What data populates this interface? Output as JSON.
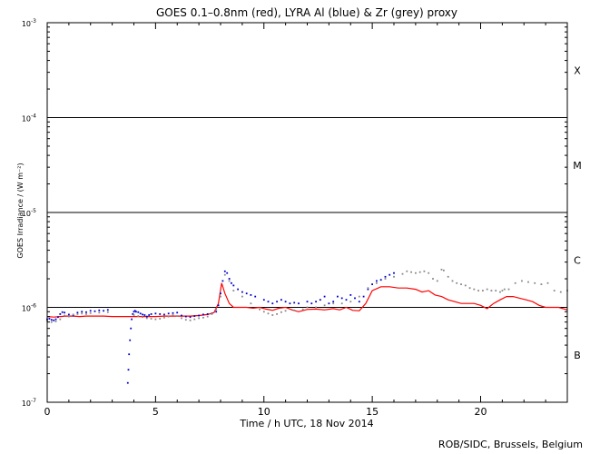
{
  "chart_data": {
    "type": "scatter",
    "title": "GOES 0.1–0.8nm (red), LYRA Al (blue) & Zr (grey) proxy",
    "xlabel": "Time / h UTC, 18 Nov 2014",
    "ylabel": "GOES Irradiance / (W m⁻²)",
    "xlim": [
      0,
      24
    ],
    "ylim": [
      1e-07,
      0.001
    ],
    "yscale": "log",
    "x_ticks": [
      0,
      5,
      10,
      15,
      20
    ],
    "x_tick_labels": [
      "0",
      "5",
      "10",
      "15",
      "20"
    ],
    "y_ticks": [
      1e-07,
      1e-06,
      1e-05,
      0.0001,
      0.001
    ],
    "y_tick_labels": [
      {
        "base": "10",
        "exp": "-7"
      },
      {
        "base": "10",
        "exp": "-6"
      },
      {
        "base": "10",
        "exp": "-5"
      },
      {
        "base": "10",
        "exp": "-4"
      },
      {
        "base": "10",
        "exp": "-3"
      }
    ],
    "flare_class_lines": [
      1e-06,
      1e-05,
      0.0001
    ],
    "flare_classes": [
      {
        "label": "X",
        "y": 0.000316
      },
      {
        "label": "M",
        "y": 3.16e-05
      },
      {
        "label": "C",
        "y": 3.16e-06
      },
      {
        "label": "B",
        "y": 3.16e-07
      }
    ],
    "series": [
      {
        "name": "GOES 0.1–0.8nm",
        "color": "#ff0000",
        "style": "line",
        "x": [
          0,
          0.3,
          0.6,
          0.9,
          1.2,
          1.5,
          1.8,
          2.2,
          2.6,
          3.0,
          3.4,
          3.8,
          4.2,
          4.6,
          5.0,
          5.4,
          5.8,
          6.2,
          6.6,
          7.0,
          7.4,
          7.7,
          7.9,
          8.05,
          8.2,
          8.4,
          8.6,
          8.9,
          9.2,
          9.5,
          9.8,
          10.1,
          10.4,
          10.7,
          11.0,
          11.3,
          11.6,
          12.0,
          12.4,
          12.8,
          13.2,
          13.5,
          13.8,
          14.1,
          14.4,
          14.7,
          15.0,
          15.4,
          15.8,
          16.2,
          16.6,
          17.0,
          17.3,
          17.6,
          17.9,
          18.2,
          18.5,
          18.8,
          19.1,
          19.4,
          19.7,
          20.0,
          20.3,
          20.6,
          20.9,
          21.2,
          21.5,
          21.8,
          22.1,
          22.4,
          22.7,
          23.0,
          23.3,
          23.6,
          24.0
        ],
        "y": [
          8e-07,
          7.9e-07,
          8e-07,
          8.1e-07,
          8.1e-07,
          8e-07,
          8.1e-07,
          8.1e-07,
          8.1e-07,
          8e-07,
          8e-07,
          8e-07,
          8e-07,
          8e-07,
          8e-07,
          8.1e-07,
          8.1e-07,
          8.1e-07,
          8.1e-07,
          8.2e-07,
          8.4e-07,
          8.8e-07,
          1.1e-06,
          1.8e-06,
          1.4e-06,
          1.1e-06,
          1e-06,
          1e-06,
          1e-06,
          9.8e-07,
          1e-06,
          9.6e-07,
          9.3e-07,
          9.8e-07,
          1e-06,
          9.4e-07,
          9e-07,
          9.5e-07,
          9.6e-07,
          9.4e-07,
          9.7e-07,
          9.4e-07,
          1e-06,
          9.3e-07,
          9.2e-07,
          1.1e-06,
          1.5e-06,
          1.65e-06,
          1.65e-06,
          1.6e-06,
          1.6e-06,
          1.55e-06,
          1.45e-06,
          1.5e-06,
          1.35e-06,
          1.3e-06,
          1.2e-06,
          1.15e-06,
          1.1e-06,
          1.1e-06,
          1.1e-06,
          1.05e-06,
          9.7e-07,
          1.1e-06,
          1.2e-06,
          1.3e-06,
          1.3e-06,
          1.25e-06,
          1.2e-06,
          1.15e-06,
          1.05e-06,
          1e-06,
          1e-06,
          1e-06,
          9.4e-07
        ]
      },
      {
        "name": "LYRA Al",
        "color": "#0000cc",
        "style": "dots",
        "x": [
          0.0,
          0.1,
          0.2,
          0.3,
          0.4,
          0.5,
          0.6,
          0.7,
          0.8,
          1.0,
          1.2,
          1.4,
          1.6,
          1.8,
          2.0,
          2.2,
          2.4,
          2.6,
          2.8,
          3.72,
          3.75,
          3.78,
          3.82,
          3.86,
          3.9,
          3.95,
          4.0,
          4.05,
          4.1,
          4.2,
          4.3,
          4.4,
          4.5,
          4.6,
          4.7,
          4.8,
          5.0,
          5.2,
          5.4,
          5.6,
          5.8,
          6.0,
          6.2,
          6.4,
          6.6,
          6.8,
          7.0,
          7.2,
          7.4,
          7.6,
          7.8,
          7.9,
          8.0,
          8.1,
          8.2,
          8.3,
          8.4,
          8.5,
          8.6,
          8.8,
          9.0,
          9.2,
          9.4,
          9.6,
          10.0,
          10.2,
          10.4,
          10.6,
          10.8,
          11.0,
          11.2,
          11.4,
          11.6,
          12.0,
          12.2,
          12.4,
          12.6,
          12.8,
          13.0,
          13.2,
          13.4,
          13.6,
          13.8,
          14.0,
          14.2,
          14.4,
          14.6,
          14.8,
          15.0,
          15.2,
          15.4,
          15.6,
          15.8,
          16.0
        ],
        "y": [
          7.5e-07,
          7.6e-07,
          7.4e-07,
          7.3e-07,
          7.5e-07,
          7.9e-07,
          8.5e-07,
          8.9e-07,
          8.8e-07,
          8.4e-07,
          8.2e-07,
          8.8e-07,
          9e-07,
          8.9e-07,
          9.2e-07,
          9.1e-07,
          9.3e-07,
          9.2e-07,
          9.4e-07,
          1.6e-07,
          2.2e-07,
          3.2e-07,
          4.5e-07,
          6e-07,
          7.5e-07,
          8.5e-07,
          9e-07,
          9.2e-07,
          9e-07,
          8.9e-07,
          8.6e-07,
          8.4e-07,
          8.3e-07,
          8e-07,
          8.3e-07,
          8.5e-07,
          8.6e-07,
          8.5e-07,
          8.4e-07,
          8.6e-07,
          8.7e-07,
          8.8e-07,
          8.2e-07,
          8e-07,
          7.9e-07,
          8.1e-07,
          8.2e-07,
          8.4e-07,
          8.5e-07,
          8.6e-07,
          9e-07,
          1.05e-06,
          1.4e-06,
          1.9e-06,
          2.4e-06,
          2.3e-06,
          2e-06,
          1.8e-06,
          1.7e-06,
          1.55e-06,
          1.45e-06,
          1.4e-06,
          1.35e-06,
          1.3e-06,
          1.2e-06,
          1.15e-06,
          1.1e-06,
          1.15e-06,
          1.2e-06,
          1.15e-06,
          1.1e-06,
          1.12e-06,
          1.1e-06,
          1.15e-06,
          1.1e-06,
          1.15e-06,
          1.2e-06,
          1.3e-06,
          1.1e-06,
          1.15e-06,
          1.3e-06,
          1.25e-06,
          1.2e-06,
          1.35e-06,
          1.25e-06,
          1.15e-06,
          1.3e-06,
          1.55e-06,
          1.75e-06,
          1.9e-06,
          1.95e-06,
          2.1e-06,
          2.2e-06,
          2.3e-06
        ]
      },
      {
        "name": "LYRA Zr",
        "color": "#888888",
        "style": "dots",
        "x": [
          0.0,
          0.2,
          0.4,
          0.6,
          0.8,
          1.0,
          1.2,
          1.4,
          1.6,
          1.8,
          2.0,
          2.4,
          2.8,
          4.0,
          4.2,
          4.4,
          4.6,
          4.8,
          5.0,
          5.2,
          5.4,
          5.6,
          5.8,
          6.0,
          6.2,
          6.4,
          6.6,
          6.8,
          7.0,
          7.2,
          7.4,
          7.6,
          7.8,
          8.0,
          8.2,
          8.4,
          8.6,
          9.0,
          9.4,
          9.8,
          10.0,
          10.2,
          10.4,
          10.6,
          10.8,
          11.0,
          11.4,
          11.8,
          12.0,
          12.4,
          12.8,
          13.2,
          13.6,
          14.0,
          14.4,
          14.8,
          15.2,
          15.6,
          16.0,
          16.4,
          16.6,
          16.8,
          17.0,
          17.2,
          17.4,
          17.6,
          17.8,
          18.0,
          18.2,
          18.3,
          18.5,
          18.7,
          18.9,
          19.1,
          19.3,
          19.5,
          19.7,
          19.9,
          20.1,
          20.3,
          20.5,
          20.7,
          20.9,
          21.0,
          21.1,
          21.3,
          21.6,
          21.9,
          22.2,
          22.5,
          22.8,
          23.1,
          23.4,
          23.7,
          24.0
        ],
        "y": [
          7.2e-07,
          7e-07,
          7.1e-07,
          7.5e-07,
          8.2e-07,
          8e-07,
          8.4e-07,
          8.5e-07,
          8.6e-07,
          8.5e-07,
          8.7e-07,
          8.8e-07,
          8.9e-07,
          8.3e-07,
          8.1e-07,
          7.9e-07,
          7.7e-07,
          7.6e-07,
          7.5e-07,
          7.6e-07,
          7.8e-07,
          8e-07,
          8.3e-07,
          8.1e-07,
          7.7e-07,
          7.4e-07,
          7.3e-07,
          7.5e-07,
          7.7e-07,
          7.8e-07,
          8e-07,
          8.5e-07,
          9.5e-07,
          1.3e-06,
          2.2e-06,
          1.9e-06,
          1.5e-06,
          1.3e-06,
          1.1e-06,
          9.5e-07,
          9e-07,
          8.6e-07,
          8.3e-07,
          8.5e-07,
          8.9e-07,
          9.2e-07,
          9.3e-07,
          9.5e-07,
          1e-06,
          1e-06,
          1.05e-06,
          1.1e-06,
          1.1e-06,
          1.15e-06,
          1.3e-06,
          1.6e-06,
          1.8e-06,
          2e-06,
          2.1e-06,
          2.25e-06,
          2.4e-06,
          2.35e-06,
          2.3e-06,
          2.35e-06,
          2.4e-06,
          2.3e-06,
          2e-06,
          1.9e-06,
          2.5e-06,
          2.45e-06,
          2.1e-06,
          1.9e-06,
          1.8e-06,
          1.75e-06,
          1.7e-06,
          1.6e-06,
          1.55e-06,
          1.5e-06,
          1.5e-06,
          1.55e-06,
          1.5e-06,
          1.5e-06,
          1.45e-06,
          1.5e-06,
          1.55e-06,
          1.55e-06,
          1.8e-06,
          1.9e-06,
          1.85e-06,
          1.8e-06,
          1.75e-06,
          1.8e-06,
          1.5e-06,
          1.45e-06,
          1.5e-06
        ]
      }
    ],
    "credit": "ROB/SIDC, Brussels, Belgium"
  }
}
